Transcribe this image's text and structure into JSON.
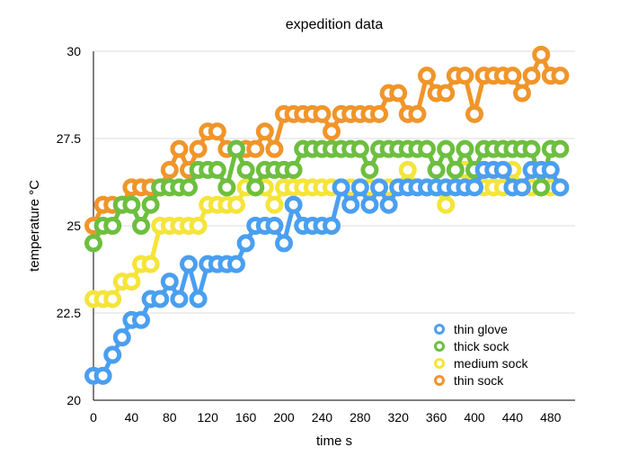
{
  "chart_data": {
    "type": "line",
    "title": "expedition data",
    "xlabel": "time s",
    "ylabel": "temperature °C",
    "xlim": [
      0,
      500
    ],
    "ylim": [
      20,
      30
    ],
    "x_ticks": [
      "0",
      "40",
      "80",
      "120",
      "160",
      "200",
      "240",
      "280",
      "320",
      "360",
      "400",
      "440",
      "480"
    ],
    "y_ticks": [
      "20",
      "22.5",
      "25",
      "27.5",
      "30"
    ],
    "grid": "horizontal",
    "legend_position": "bottom-right",
    "x": [
      0,
      10,
      20,
      30,
      40,
      50,
      60,
      70,
      80,
      90,
      100,
      110,
      120,
      130,
      140,
      150,
      160,
      170,
      180,
      190,
      200,
      210,
      220,
      230,
      240,
      250,
      260,
      270,
      280,
      290,
      300,
      310,
      320,
      330,
      340,
      350,
      360,
      370,
      380,
      390,
      400,
      410,
      420,
      430,
      440,
      450,
      460,
      470,
      480,
      490
    ],
    "series": [
      {
        "name": "thin glove",
        "color": "#4a9ff0",
        "values": [
          20.7,
          20.7,
          21.3,
          21.8,
          22.3,
          22.3,
          22.9,
          22.9,
          23.4,
          22.9,
          23.9,
          22.9,
          23.9,
          23.9,
          23.9,
          23.9,
          24.5,
          25.0,
          25.0,
          25.0,
          24.5,
          25.6,
          25.0,
          25.0,
          25.0,
          25.0,
          26.1,
          25.6,
          26.1,
          25.6,
          26.1,
          25.6,
          26.1,
          26.1,
          26.1,
          26.1,
          26.1,
          26.1,
          26.1,
          26.1,
          26.1,
          26.6,
          26.6,
          26.6,
          26.1,
          26.1,
          26.6,
          26.6,
          26.6,
          26.1
        ]
      },
      {
        "name": "thick sock",
        "color": "#6dbf3f",
        "values": [
          24.5,
          25.0,
          25.0,
          25.6,
          25.6,
          25.0,
          25.6,
          26.1,
          26.1,
          26.1,
          26.1,
          26.6,
          26.6,
          26.6,
          26.1,
          27.2,
          26.6,
          26.1,
          26.6,
          26.6,
          26.6,
          26.6,
          27.2,
          27.2,
          27.2,
          27.2,
          27.2,
          27.2,
          27.2,
          26.6,
          27.2,
          27.2,
          27.2,
          27.2,
          27.2,
          27.2,
          26.6,
          27.2,
          26.6,
          27.2,
          26.6,
          27.2,
          27.2,
          27.2,
          27.2,
          27.2,
          27.2,
          26.1,
          27.2,
          27.2
        ]
      },
      {
        "name": "medium sock",
        "color": "#f5e43a",
        "values": [
          22.9,
          22.9,
          22.9,
          23.4,
          23.4,
          23.9,
          23.9,
          25.0,
          25.0,
          25.0,
          25.0,
          25.0,
          25.6,
          25.6,
          25.6,
          25.6,
          26.1,
          26.1,
          26.1,
          25.6,
          26.1,
          26.1,
          26.1,
          26.1,
          26.1,
          26.1,
          26.1,
          26.1,
          26.1,
          26.1,
          26.1,
          26.1,
          26.1,
          26.6,
          26.1,
          26.1,
          26.1,
          25.6,
          26.6,
          26.6,
          26.1,
          26.1,
          26.1,
          26.1,
          26.6,
          26.1,
          26.1,
          26.1,
          26.1,
          26.1
        ]
      },
      {
        "name": "thin sock",
        "color": "#f0952a",
        "values": [
          25.0,
          25.6,
          25.6,
          25.6,
          26.1,
          26.1,
          26.1,
          26.1,
          26.6,
          27.2,
          26.6,
          27.2,
          27.7,
          27.7,
          27.2,
          27.2,
          27.2,
          27.2,
          27.7,
          27.2,
          28.2,
          28.2,
          28.2,
          28.2,
          28.2,
          27.7,
          28.2,
          28.2,
          28.2,
          28.2,
          28.2,
          28.8,
          28.8,
          28.2,
          28.2,
          29.3,
          28.8,
          28.8,
          29.3,
          29.3,
          28.2,
          29.3,
          29.3,
          29.3,
          29.3,
          28.8,
          29.3,
          29.9,
          29.3,
          29.3
        ]
      }
    ]
  }
}
